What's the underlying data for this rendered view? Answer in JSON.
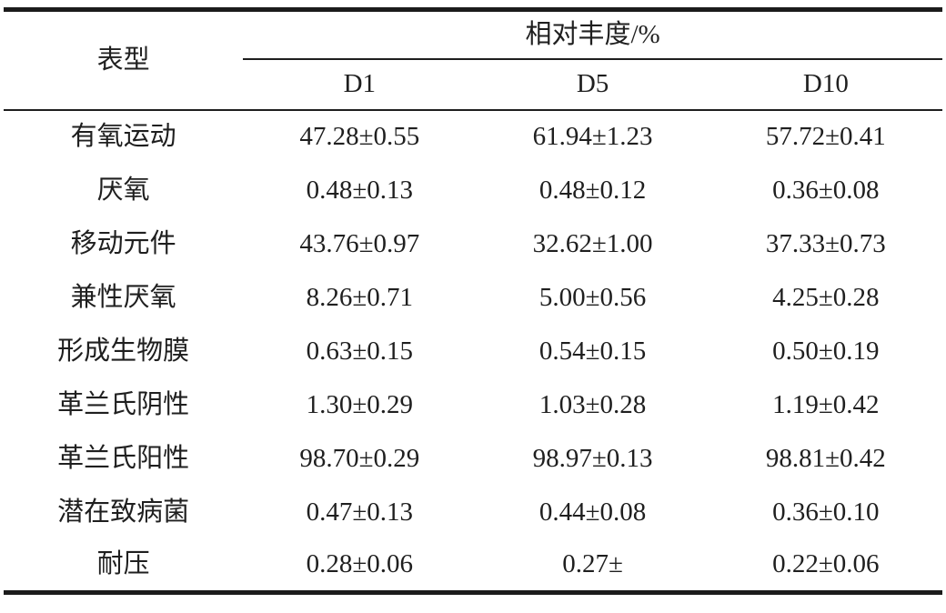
{
  "table": {
    "header": {
      "phenotype_label": "表型",
      "abundance_label": "相对丰度/%",
      "columns": [
        "D1",
        "D5",
        "D10"
      ]
    },
    "rows": [
      {
        "label": "有氧运动",
        "d1": "47.28±0.55",
        "d5": "61.94±1.23",
        "d10": "57.72±0.41"
      },
      {
        "label": "厌氧",
        "d1": "0.48±0.13",
        "d5": "0.48±0.12",
        "d10": "0.36±0.08"
      },
      {
        "label": "移动元件",
        "d1": "43.76±0.97",
        "d5": "32.62±1.00",
        "d10": "37.33±0.73"
      },
      {
        "label": "兼性厌氧",
        "d1": "8.26±0.71",
        "d5": "5.00±0.56",
        "d10": "4.25±0.28"
      },
      {
        "label": "形成生物膜",
        "d1": "0.63±0.15",
        "d5": "0.54±0.15",
        "d10": "0.50±0.19"
      },
      {
        "label": "革兰氏阴性",
        "d1": "1.30±0.29",
        "d5": "1.03±0.28",
        "d10": "1.19±0.42"
      },
      {
        "label": "革兰氏阳性",
        "d1": "98.70±0.29",
        "d5": "98.97±0.13",
        "d10": "98.81±0.42"
      },
      {
        "label": "潜在致病菌",
        "d1": "0.47±0.13",
        "d5": "0.44±0.08",
        "d10": "0.36±0.10"
      },
      {
        "label": "耐压",
        "d1": "0.28±0.06",
        "d5": "0.27±",
        "d10": "0.22±0.06"
      }
    ],
    "colors": {
      "rule": "#1b1b1b",
      "text": "#1f1f1f",
      "background": "#ffffff"
    }
  },
  "chart_data": {
    "type": "table",
    "title": "相对丰度/%",
    "categories": [
      "有氧运动",
      "厌氧",
      "移动元件",
      "兼性厌氧",
      "形成生物膜",
      "革兰氏阴性",
      "革兰氏阳性",
      "潜在致病菌",
      "耐压"
    ],
    "series": [
      {
        "name": "D1",
        "values": [
          47.28,
          0.48,
          43.76,
          8.26,
          0.63,
          1.3,
          98.7,
          0.47,
          0.28
        ],
        "errors": [
          0.55,
          0.13,
          0.97,
          0.71,
          0.15,
          0.29,
          0.29,
          0.13,
          0.06
        ]
      },
      {
        "name": "D5",
        "values": [
          61.94,
          0.48,
          32.62,
          5.0,
          0.54,
          1.03,
          98.97,
          0.44,
          0.27
        ],
        "errors": [
          1.23,
          0.12,
          1.0,
          0.56,
          0.15,
          0.28,
          0.13,
          0.08,
          null
        ]
      },
      {
        "name": "D10",
        "values": [
          57.72,
          0.36,
          37.33,
          4.25,
          0.5,
          1.19,
          98.81,
          0.36,
          0.22
        ],
        "errors": [
          0.41,
          0.08,
          0.73,
          0.28,
          0.19,
          0.42,
          0.42,
          0.1,
          0.06
        ]
      }
    ]
  }
}
